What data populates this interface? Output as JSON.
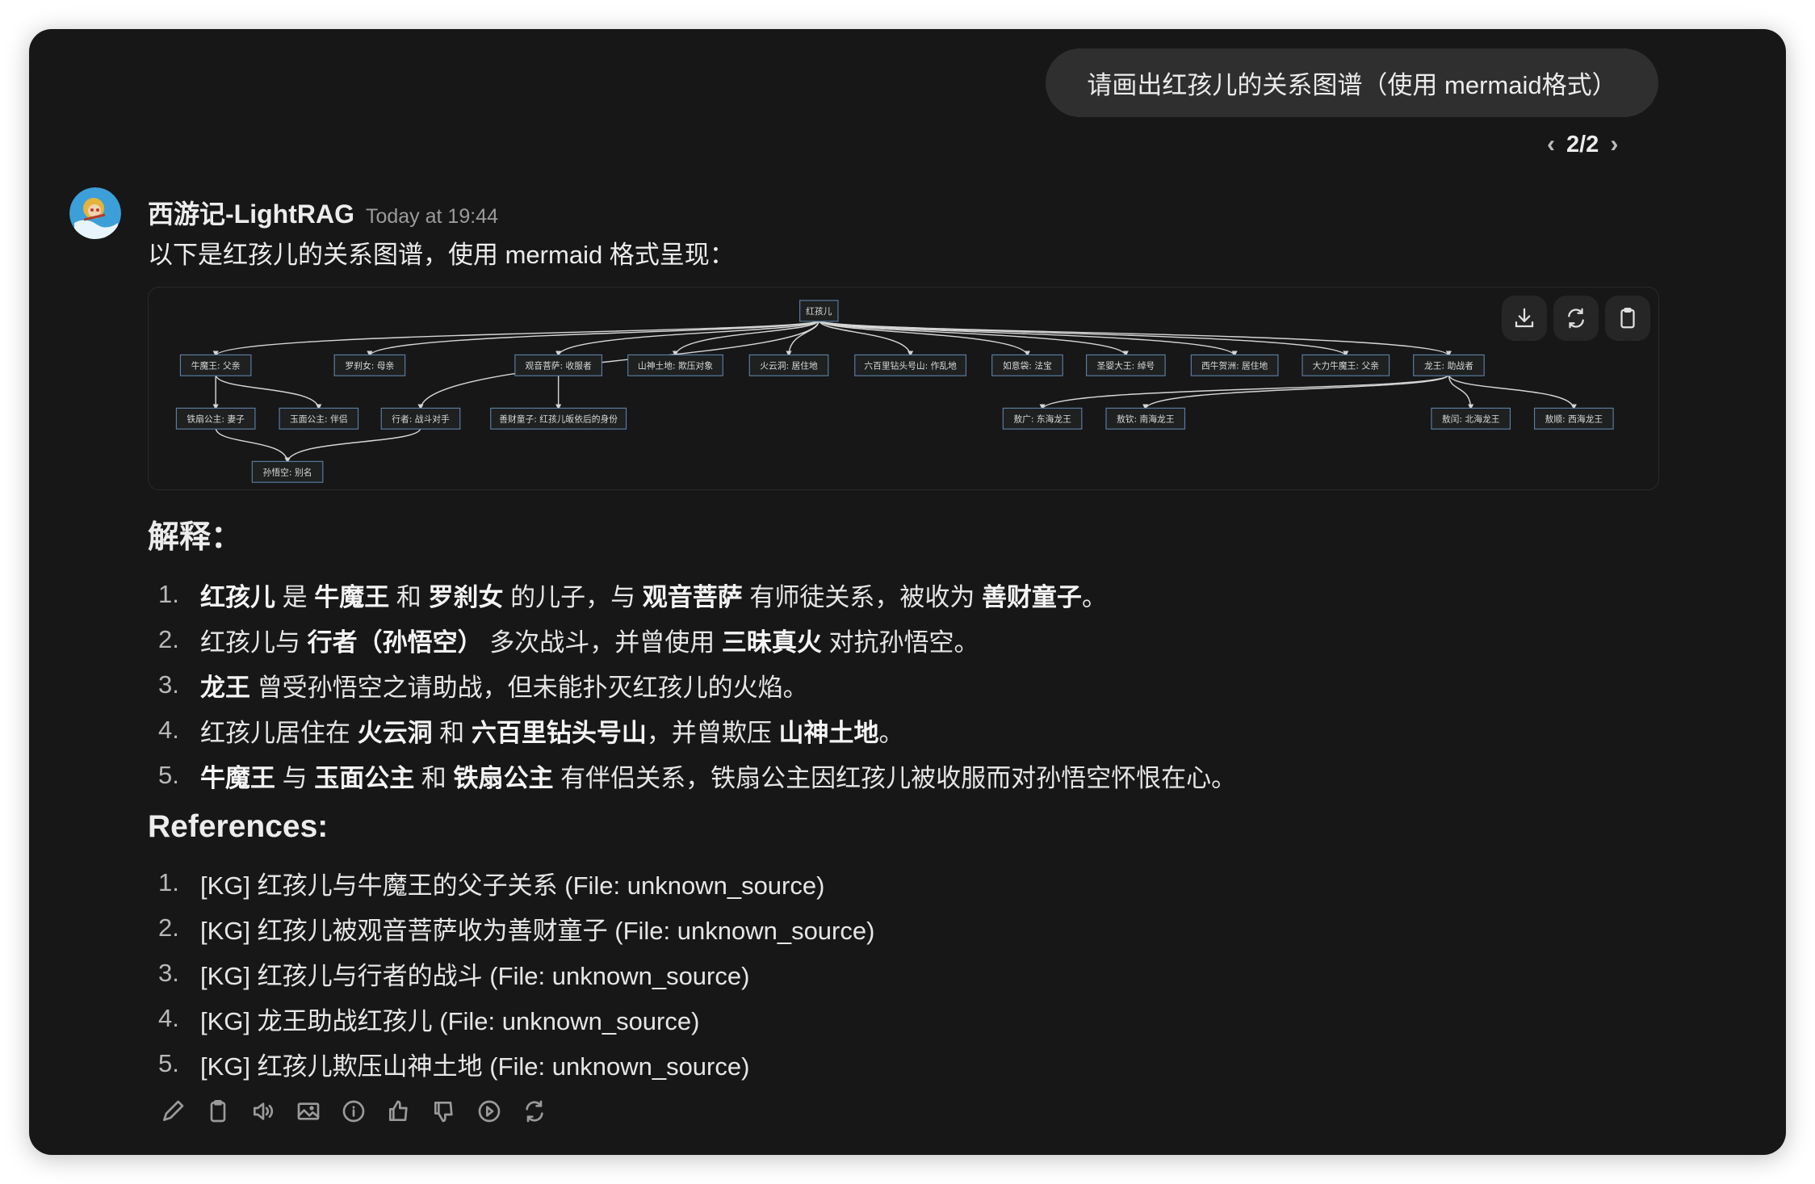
{
  "user_message": "请画出红孩儿的关系图谱（使用 mermaid格式）",
  "pager": {
    "current_total": "2/2",
    "prev_icon": "chevron-left-icon",
    "next_icon": "chevron-right-icon"
  },
  "assistant": {
    "name": "西游记-LightRAG",
    "timestamp": "Today at 19:44",
    "intro": "以下是红孩儿的关系图谱，使用 mermaid 格式呈现："
  },
  "diagram": {
    "toolbar": [
      "download-icon",
      "refresh-icon",
      "clipboard-icon"
    ],
    "colors": {
      "node_border": "#5b7fa3",
      "node_fill": "#1f2020",
      "edge": "#d6d6d6",
      "text": "#d9d9d9"
    },
    "nodes": [
      {
        "id": "root",
        "label": "红孩儿"
      },
      {
        "id": "nmw",
        "label": "牛魔王: 父亲"
      },
      {
        "id": "lcn",
        "label": "罗刹女: 母亲"
      },
      {
        "id": "gy",
        "label": "观音菩萨: 收服者"
      },
      {
        "id": "ss",
        "label": "山神土地: 欺压对象"
      },
      {
        "id": "hyd",
        "label": "火云洞: 居住地"
      },
      {
        "id": "lbl",
        "label": "六百里钻头号山: 作乱地"
      },
      {
        "id": "ryd",
        "label": "如意袋: 法宝"
      },
      {
        "id": "sy",
        "label": "圣婴大王: 绰号"
      },
      {
        "id": "xn",
        "label": "西牛贺洲: 居住地"
      },
      {
        "id": "dl",
        "label": "大力牛魔王: 父亲"
      },
      {
        "id": "lw",
        "label": "龙王: 助战者"
      },
      {
        "id": "tsgz",
        "label": "铁扇公主: 妻子"
      },
      {
        "id": "ymgz",
        "label": "玉面公主: 伴侣"
      },
      {
        "id": "xz",
        "label": "行者: 战斗对手"
      },
      {
        "id": "sc",
        "label": "善财童子: 红孩儿皈依后的身份"
      },
      {
        "id": "ag",
        "label": "敖广: 东海龙王"
      },
      {
        "id": "aq",
        "label": "敖钦: 南海龙王"
      },
      {
        "id": "ar",
        "label": "敖闰: 北海龙王"
      },
      {
        "id": "as",
        "label": "敖顺: 西海龙王"
      },
      {
        "id": "swk",
        "label": "孙悟空: 别名"
      }
    ],
    "edges": [
      [
        "root",
        "nmw"
      ],
      [
        "root",
        "lcn"
      ],
      [
        "root",
        "xz"
      ],
      [
        "root",
        "gy"
      ],
      [
        "root",
        "ss"
      ],
      [
        "root",
        "hyd"
      ],
      [
        "root",
        "lbl"
      ],
      [
        "root",
        "ryd"
      ],
      [
        "root",
        "sy"
      ],
      [
        "root",
        "xn"
      ],
      [
        "root",
        "dl"
      ],
      [
        "root",
        "lw"
      ],
      [
        "nmw",
        "tsgz"
      ],
      [
        "nmw",
        "ymgz"
      ],
      [
        "gy",
        "sc"
      ],
      [
        "tsgz",
        "swk"
      ],
      [
        "xz",
        "swk"
      ],
      [
        "lw",
        "ag"
      ],
      [
        "lw",
        "aq"
      ],
      [
        "lw",
        "ar"
      ],
      [
        "lw",
        "as"
      ]
    ]
  },
  "explanation": {
    "heading": "解释：",
    "items": [
      [
        {
          "t": "红孩儿",
          "b": true
        },
        {
          "t": " 是 "
        },
        {
          "t": "牛魔王",
          "b": true
        },
        {
          "t": " 和 "
        },
        {
          "t": "罗刹女",
          "b": true
        },
        {
          "t": " 的儿子，与 "
        },
        {
          "t": "观音菩萨",
          "b": true
        },
        {
          "t": " 有师徒关系，被收为 "
        },
        {
          "t": "善财童子",
          "b": true
        },
        {
          "t": "。"
        }
      ],
      [
        {
          "t": "红孩儿与 "
        },
        {
          "t": "行者（孙悟空）",
          "b": true
        },
        {
          "t": " 多次战斗，并曾使用 "
        },
        {
          "t": "三昧真火",
          "b": true
        },
        {
          "t": " 对抗孙悟空。"
        }
      ],
      [
        {
          "t": "龙王",
          "b": true
        },
        {
          "t": " 曾受孙悟空之请助战，但未能扑灭红孩儿的火焰。"
        }
      ],
      [
        {
          "t": "红孩儿居住在 "
        },
        {
          "t": "火云洞",
          "b": true
        },
        {
          "t": " 和 "
        },
        {
          "t": "六百里钻头号山",
          "b": true
        },
        {
          "t": "，并曾欺压 "
        },
        {
          "t": "山神土地",
          "b": true
        },
        {
          "t": "。"
        }
      ],
      [
        {
          "t": "牛魔王",
          "b": true
        },
        {
          "t": " 与 "
        },
        {
          "t": "玉面公主",
          "b": true
        },
        {
          "t": " 和 "
        },
        {
          "t": "铁扇公主",
          "b": true
        },
        {
          "t": " 有伴侣关系，铁扇公主因红孩儿被收服而对孙悟空怀恨在心。"
        }
      ]
    ]
  },
  "references": {
    "heading": "References:",
    "items": [
      "[KG] 红孩儿与牛魔王的父子关系 (File: unknown_source)",
      "[KG] 红孩儿被观音菩萨收为善财童子 (File: unknown_source)",
      "[KG] 红孩儿与行者的战斗 (File: unknown_source)",
      "[KG] 龙王助战红孩儿 (File: unknown_source)",
      "[KG] 红孩儿欺压山神土地 (File: unknown_source)"
    ]
  },
  "actions": [
    "edit-icon",
    "copy-icon",
    "read-aloud-icon",
    "image-icon",
    "info-icon",
    "thumbs-up-icon",
    "thumbs-down-icon",
    "play-icon",
    "regenerate-icon"
  ]
}
